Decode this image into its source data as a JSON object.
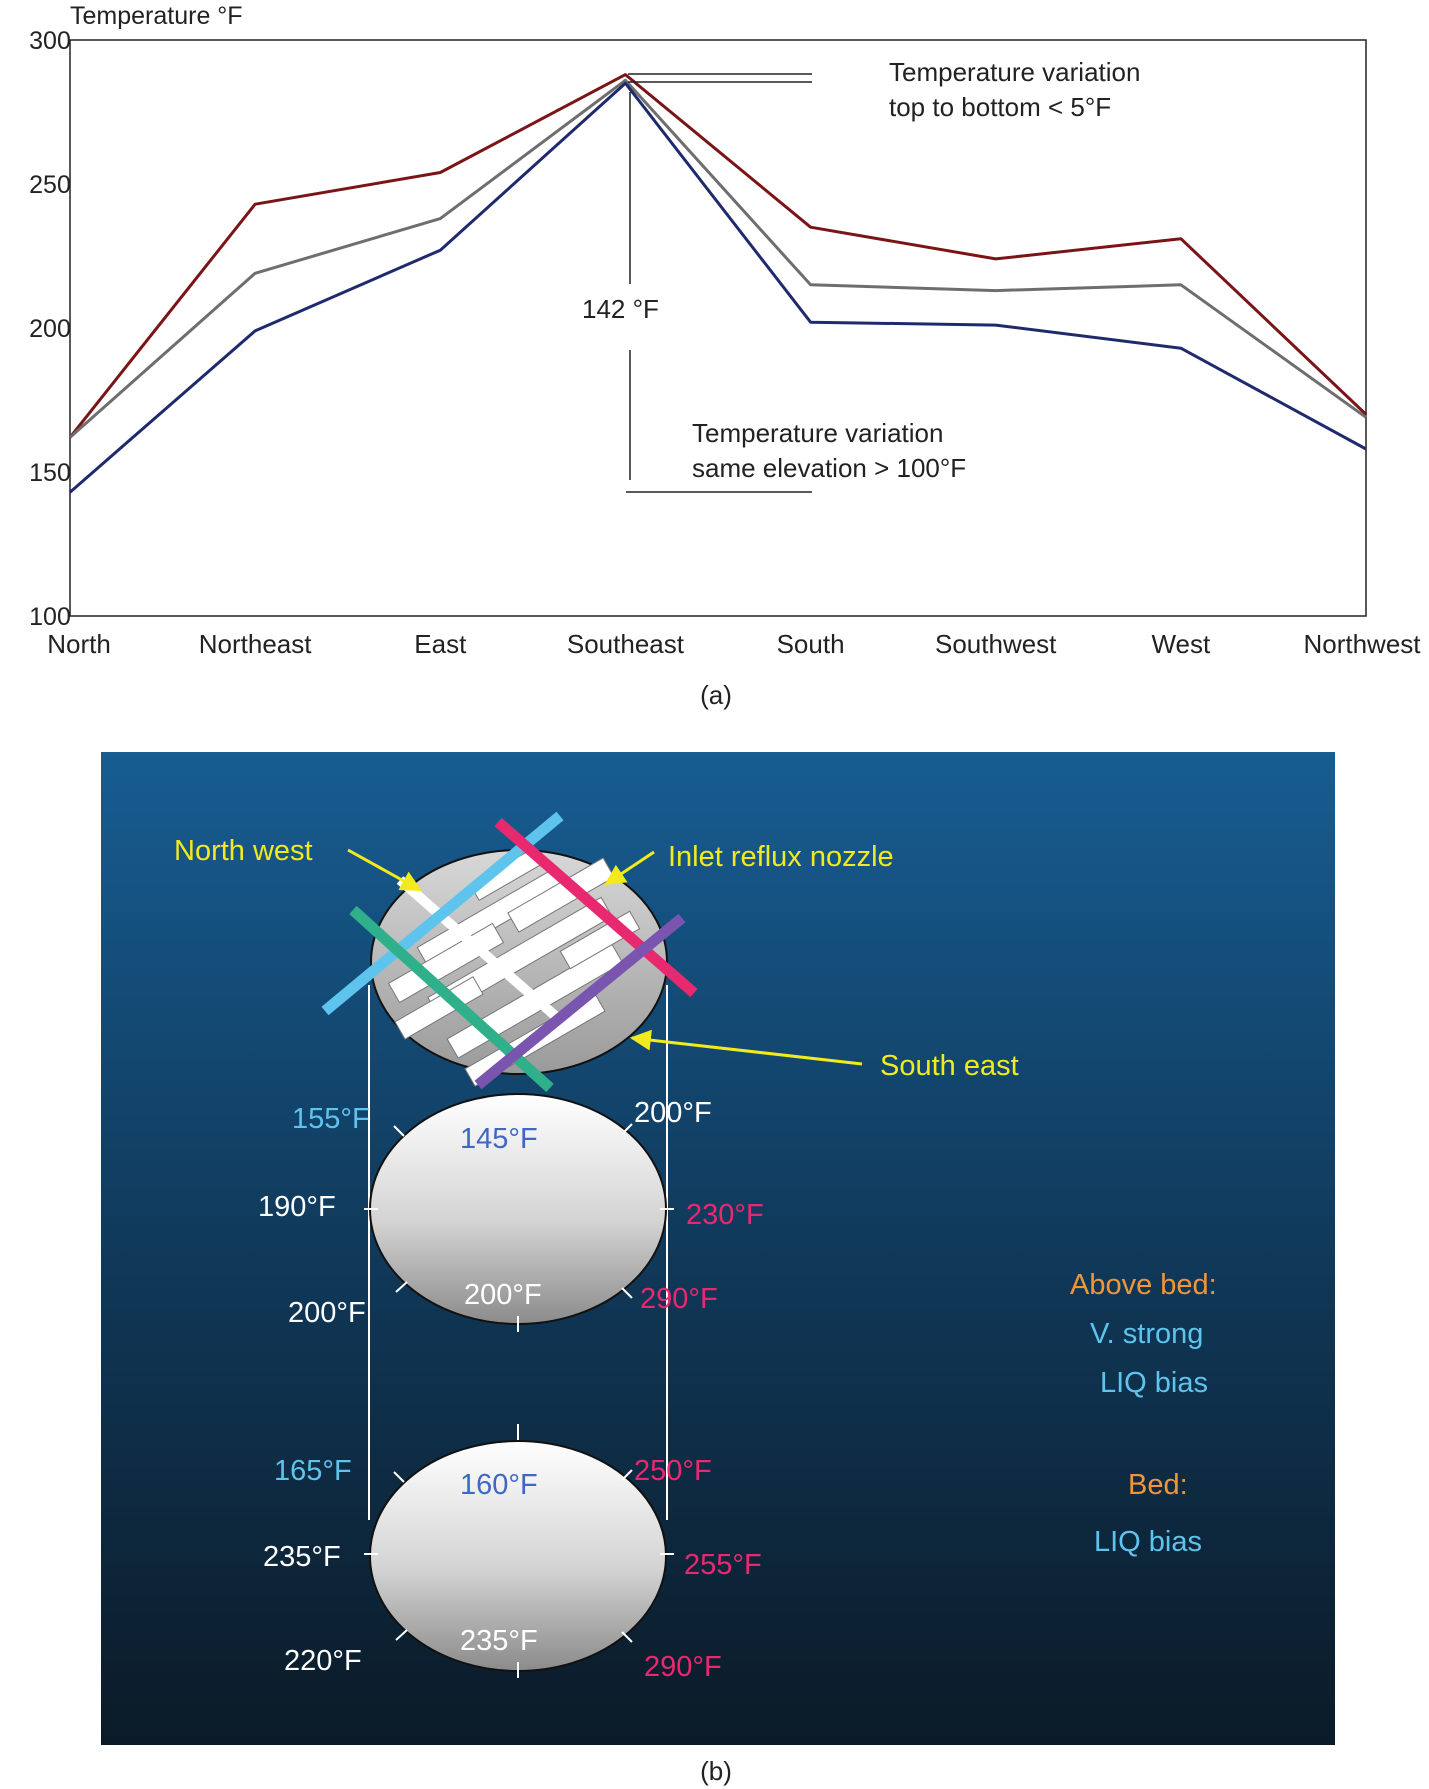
{
  "chart_data": {
    "type": "line",
    "title": "",
    "ylabel": "Temperature °F",
    "xlabel": "",
    "categories": [
      "North",
      "Northeast",
      "East",
      "Southeast",
      "South",
      "Southwest",
      "West",
      "Northwest"
    ],
    "ylim": [
      100,
      300
    ],
    "yticks": [
      100,
      150,
      200,
      250,
      300
    ],
    "grid": false,
    "series": [
      {
        "color": "#7a1416",
        "values": [
          162,
          243,
          254,
          288,
          235,
          224,
          231,
          170
        ]
      },
      {
        "color": "#6e6e6e",
        "values": [
          162,
          219,
          238,
          286,
          215,
          213,
          215,
          169
        ]
      },
      {
        "color": "#1f2a6e",
        "values": [
          143,
          199,
          227,
          285,
          202,
          201,
          193,
          158
        ]
      }
    ],
    "annotations": {
      "top_line1": "Temperature variation",
      "top_line2": "top to bottom < 5°F",
      "span_label": "142 °F",
      "bottom_line1": "Temperature variation",
      "bottom_line2": "same elevation > 100°F"
    },
    "caption": "(a)"
  },
  "diagram": {
    "caption": "(b)",
    "colors": {
      "cyan": "#5ec4ee",
      "magenta": "#e8286f",
      "green": "#2fb08a",
      "purple": "#7a55b0",
      "yellow": "#f2ea1c",
      "orange": "#f0963a",
      "blue_label": "#3f67c4",
      "white": "#ffffff"
    },
    "labels": {
      "north_west": "North west",
      "inlet": "Inlet reflux nozzle",
      "south_east": "South east"
    },
    "upper_ring": {
      "top_left": "155°F",
      "top_center": "145°F",
      "top_right": "200°F",
      "left": "190°F",
      "right": "230°F",
      "bottom_left": "200°F",
      "bottom_center": "200°F",
      "bottom_right": "290°F"
    },
    "lower_ring": {
      "top_left": "165°F",
      "top_center": "160°F",
      "top_right": "250°F",
      "left": "235°F",
      "right": "255°F",
      "bottom_left": "220°F",
      "bottom_center": "235°F",
      "bottom_right": "290°F"
    },
    "legend": {
      "above_bed_title": "Above bed:",
      "above_bed_line1": "V. strong",
      "above_bed_line2": "LIQ bias",
      "bed_title": "Bed:",
      "bed_line1": "LIQ bias"
    }
  }
}
